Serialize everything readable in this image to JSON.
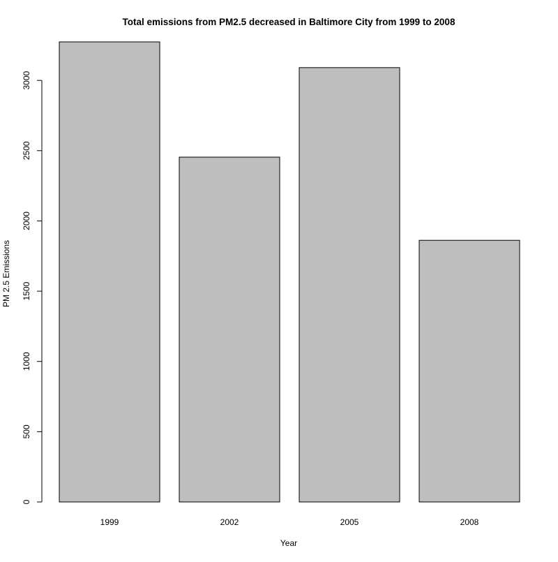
{
  "chart_data": {
    "type": "bar",
    "title": "Total emissions from PM2.5 decreased in Baltimore City from 1999 to 2008",
    "xlabel": "Year",
    "ylabel": "PM 2.5 Emissions",
    "categories": [
      "1999",
      "2002",
      "2005",
      "2008"
    ],
    "values": [
      3274,
      2454,
      3091,
      1862
    ],
    "ylim": [
      0,
      3274
    ],
    "yticks": [
      0,
      500,
      1000,
      1500,
      2000,
      2500,
      3000
    ],
    "ytick_labels": [
      "0",
      "500",
      "1000",
      "1500",
      "2000",
      "2500",
      "3000"
    ],
    "bar_color": "#bebebe",
    "bar_border_color": "#000000",
    "grid": false,
    "legend": false
  }
}
